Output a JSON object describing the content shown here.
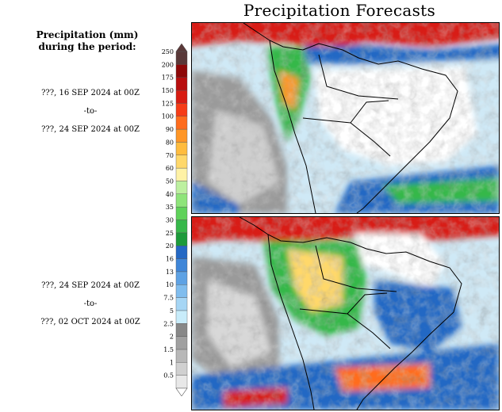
{
  "title": "Precipitation Forecasts",
  "subtitle": {
    "line1": "Precipitation (mm)",
    "line2": "during the period:"
  },
  "periods": [
    {
      "start": "???, 16 SEP 2024 at 00Z",
      "separator": "-to-",
      "end": "???, 24 SEP 2024 at 00Z"
    },
    {
      "start": "???, 24 SEP 2024 at 00Z",
      "separator": "-to-",
      "end": "???, 02 OCT 2024 at 00Z"
    }
  ],
  "colorbar": {
    "levels": [
      "0.5",
      "1",
      "1.5",
      "2",
      "2.5",
      "5",
      "7.5",
      "10",
      "13",
      "16",
      "20",
      "25",
      "30",
      "35",
      "40",
      "50",
      "60",
      "70",
      "80",
      "90",
      "100",
      "125",
      "150",
      "175",
      "200",
      "250"
    ],
    "colors": [
      "#e8e8e8",
      "#d0d0d0",
      "#b8b8b8",
      "#a0a0a0",
      "#888888",
      "#c8ecfa",
      "#a6d6f5",
      "#80bdee",
      "#5ea2e4",
      "#3f86d8",
      "#2468c4",
      "#1c9a3a",
      "#36b84a",
      "#5fd25a",
      "#8ee47a",
      "#bdf0a0",
      "#fff2a6",
      "#ffd86a",
      "#ffbc3e",
      "#ff9626",
      "#ff6c1c",
      "#f63c16",
      "#d81c12",
      "#b80e0e",
      "#8e0808",
      "#5a3838"
    ]
  },
  "maps": [
    {
      "name": "week-1-forecast"
    },
    {
      "name": "week-2-forecast"
    }
  ]
}
